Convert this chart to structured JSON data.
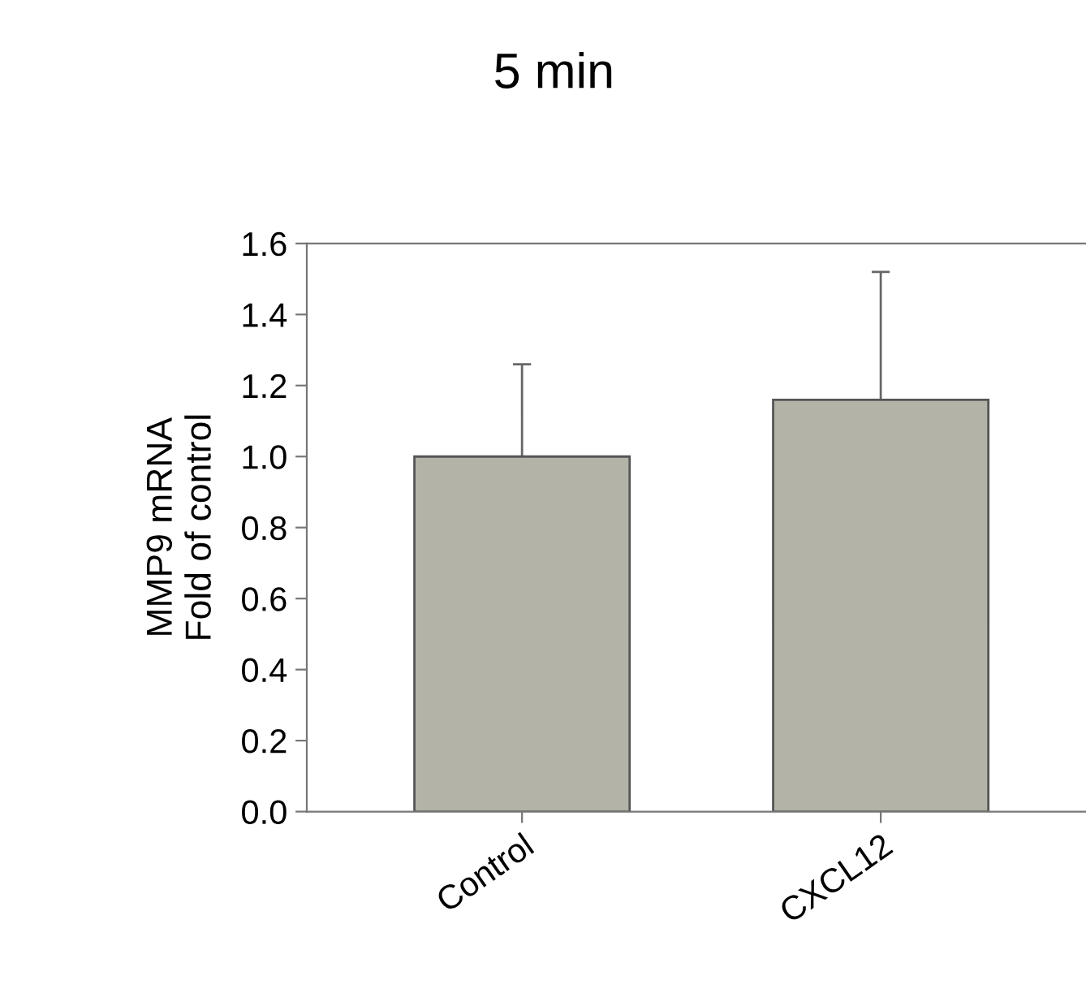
{
  "chart_data": {
    "type": "bar",
    "title": "5 min",
    "ylabel": "MMP9 mRNA\nFold of control",
    "categories": [
      "Control",
      "CXCL12",
      null
    ],
    "values": [
      1.0,
      1.16,
      null
    ],
    "errors": [
      0.26,
      0.36,
      null
    ],
    "color": "#b3b3a8",
    "ylim": [
      0,
      1.6
    ],
    "yticks": [
      {
        "value": 0,
        "label": "0.0"
      },
      0.2,
      0.4,
      0.6,
      0.8,
      {
        "value": 1,
        "label": "1.0"
      },
      1.2,
      1.4,
      1.6
    ],
    "grid": false
  }
}
